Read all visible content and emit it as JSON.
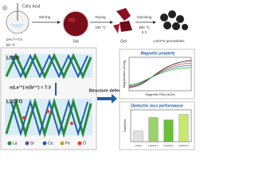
{
  "synthesis": {
    "reagent": "Citric Acid",
    "ph": "pH=7~7.5",
    "step1": "Stirring",
    "temp1": "80 °C",
    "sol": "Sol",
    "step2": "Drying",
    "temp2": "100 °C",
    "gel": "Gel",
    "step3": "Calcining",
    "temp3": "900 °C",
    "time3": "5 h",
    "product": "LSCFO perovskites"
  },
  "structure": {
    "top_label": "LCFO",
    "ratio": "n(La³⁺):n(Sr²⁺) = 7:3",
    "bottom_label": "LSCFO",
    "legend": [
      "La",
      "Sr",
      "Co",
      "Fe",
      "O"
    ]
  },
  "arrow_label": "Structure defects",
  "magnetic": {
    "title": "Magnetic property",
    "xlabel": "Magnetic Field (kOe)",
    "ylabel": "Magnetization (emu/g)"
  },
  "dielectric_chart": {
    "type": "bar",
    "title": "Dielectric loss performance",
    "ylabel": "Numbers",
    "categories": [
      "LCFO",
      "LSCFO-1",
      "LSCFO-2",
      "LSCFO-3"
    ],
    "values": [
      0.35,
      0.8,
      0.72,
      0.9
    ],
    "ylim": [
      0,
      1
    ],
    "colors": [
      "#e0e0e0",
      "#9bd36a",
      "#6bbf3a",
      "#c8e86a"
    ]
  }
}
